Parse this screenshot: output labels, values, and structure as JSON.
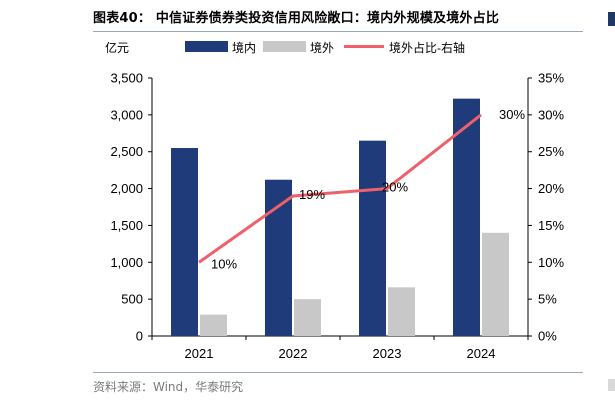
{
  "header": {
    "title": "图表40： 中信证券债券类投资信用风险敞口：境内外规模及境外占比"
  },
  "footer": {
    "source": "资料来源：Wind，华泰研究"
  },
  "colors": {
    "domestic": "#1f3b7a",
    "overseas": "#c8c8c8",
    "share_line": "#f0606a",
    "axis": "#000000"
  },
  "chart_data": {
    "type": "bar",
    "categories": [
      "2021",
      "2022",
      "2023",
      "2024"
    ],
    "y_left_label": "亿元",
    "y_left_range": [
      0,
      3500
    ],
    "y_left_ticks": [
      "0",
      "500",
      "1,000",
      "1,500",
      "2,000",
      "2,500",
      "3,000",
      "3,500"
    ],
    "y_right_range": [
      0,
      35
    ],
    "y_right_ticks": [
      "0%",
      "5%",
      "10%",
      "15%",
      "20%",
      "25%",
      "30%",
      "35%"
    ],
    "series": [
      {
        "name": "境内",
        "kind": "bar",
        "axis": "left",
        "values": [
          2550,
          2120,
          2650,
          3220
        ]
      },
      {
        "name": "境外",
        "kind": "bar",
        "axis": "left",
        "values": [
          290,
          500,
          660,
          1400
        ]
      },
      {
        "name": "境外占比-右轴",
        "kind": "line",
        "axis": "right",
        "values": [
          10,
          19,
          20,
          30
        ],
        "labels": [
          "10%",
          "19%",
          "20%",
          "30%"
        ]
      }
    ],
    "legend_position": "top",
    "grid": false
  }
}
